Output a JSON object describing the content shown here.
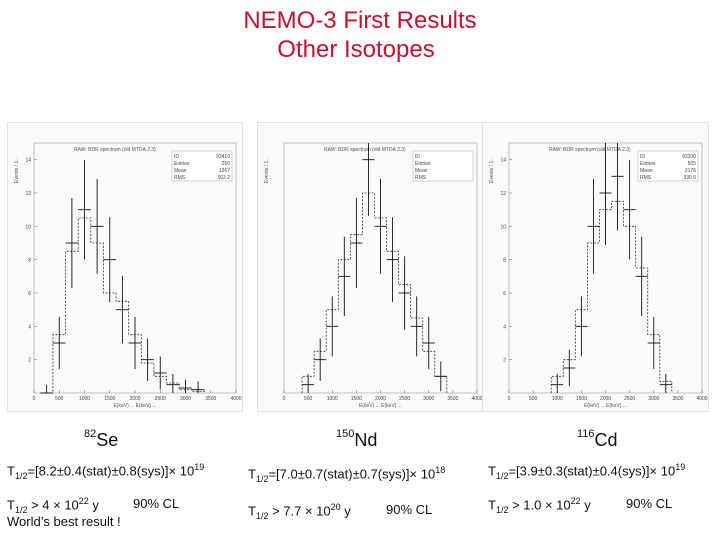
{
  "title": {
    "line1": "NEMO-3 First Results",
    "line2": "Other Isotopes"
  },
  "panels": [
    {
      "isotope": {
        "mass": "82",
        "symbol": "Se"
      },
      "half_life": {
        "prefix": "T",
        "sub": "1/2",
        "mid": "=[8.2±0.4(stat)±0.8(sys)]× 10",
        "exp": "19"
      },
      "limit": {
        "prefix": "T",
        "sub": "1/2",
        "text": " > 4 × 10",
        "exp": "22",
        "unit": " y",
        "cl": "90% CL"
      },
      "note": "World’s best result !",
      "plot": {
        "header": "RAW: BDR spectrum (old MTDA 2.3)",
        "stats": [
          [
            "ID",
            "93410"
          ],
          [
            "Entries",
            "250"
          ],
          [
            "Mean",
            "1267"
          ],
          [
            "RMS",
            "502.2"
          ]
        ],
        "ylabel": "Events / 1...",
        "xlabel": "E(keV) ... E(keV) ...",
        "yticks": [
          "2",
          "4",
          "6",
          "8",
          "10",
          "12",
          "14"
        ],
        "xticks": [
          "0",
          "500",
          "1000",
          "1500",
          "2000",
          "2500",
          "3000",
          "3500",
          "4000"
        ]
      }
    },
    {
      "isotope": {
        "mass": "150",
        "symbol": "Nd"
      },
      "half_life": {
        "prefix": "T",
        "sub": "1/2",
        "mid": "=[7.0±0.7(stat)±0.7(sys)]× 10",
        "exp": "18"
      },
      "limit": {
        "prefix": "T",
        "sub": "1/2",
        "text": " > 7.7 × 10",
        "exp": "20",
        "unit": " y",
        "cl": "90% CL"
      },
      "plot": {
        "header": "RAW: BDR spectrum (old MTDA 2.3)",
        "stats": [
          [
            "ID",
            ""
          ],
          [
            "Entries",
            ""
          ],
          [
            "Mean",
            ""
          ],
          [
            "RMS",
            ""
          ]
        ],
        "ylabel": "Events / 1...",
        "xlabel": "E(keV) ... E(keV) ...",
        "yticks": [],
        "xticks": [
          "0",
          "500",
          "1000",
          "1500",
          "2000",
          "2500",
          "3000",
          "3500",
          "4000"
        ]
      }
    },
    {
      "isotope": {
        "mass": "116",
        "symbol": "Cd"
      },
      "half_life": {
        "prefix": "T",
        "sub": "1/2",
        "mid": "=[3.9±0.3(stat)±0.4(sys)]× 10",
        "exp": "19"
      },
      "limit": {
        "prefix": "T",
        "sub": "1/2",
        "text": " > 1.0 × 10",
        "exp": "22",
        "unit": " y",
        "cl": "90% CL"
      },
      "plot": {
        "header": "RAW: BDR spectrum (old MTDA 2.3)",
        "stats": [
          [
            "ID",
            "93200"
          ],
          [
            "Entries",
            "505"
          ],
          [
            "Mean",
            "2176"
          ],
          [
            "RMS",
            "330.5"
          ]
        ],
        "ylabel": "Events / 1...",
        "xlabel": "E(keV) ... E(keV) ...",
        "yticks": [
          "2",
          "4",
          "6",
          "8",
          "10",
          "12",
          "14"
        ],
        "xticks": [
          "0",
          "500",
          "1000",
          "1500",
          "2000",
          "2500",
          "3000",
          "3500",
          "4000"
        ]
      }
    }
  ],
  "chart_data": [
    {
      "type": "bar",
      "title": "",
      "x": [
        250,
        500,
        750,
        1000,
        1250,
        1500,
        1750,
        2000,
        2250,
        2500,
        2750,
        3000,
        3250
      ],
      "series": [
        {
          "values": [
            0,
            3,
            9,
            11,
            10,
            8,
            5,
            3,
            2,
            1.2,
            0.5,
            0.3,
            0.2
          ]
        },
        {
          "values": [
            0,
            3.5,
            8.5,
            10.5,
            9,
            6,
            5.5,
            3.5,
            1.8,
            1.0,
            0.6,
            0.2,
            0.1
          ]
        }
      ],
      "xlim": [
        0,
        4000
      ],
      "ylim": [
        0,
        15
      ],
      "xlabel": "",
      "ylabel": ""
    },
    {
      "type": "bar",
      "title": "",
      "x": [
        500,
        750,
        1000,
        1250,
        1500,
        1750,
        2000,
        2250,
        2500,
        2750,
        3000,
        3250
      ],
      "series": [
        {
          "values": [
            0.5,
            2,
            4,
            7,
            9,
            14,
            10,
            8,
            6,
            4,
            3,
            1
          ]
        },
        {
          "values": [
            1,
            2.5,
            5,
            8,
            9.5,
            12,
            10.5,
            8.5,
            6.5,
            4.5,
            2.5,
            1
          ]
        }
      ],
      "xlim": [
        0,
        4000
      ],
      "ylim": [
        0,
        15
      ],
      "xlabel": "",
      "ylabel": ""
    },
    {
      "type": "bar",
      "title": "",
      "x": [
        1000,
        1250,
        1500,
        1750,
        2000,
        2250,
        2500,
        2750,
        3000,
        3250
      ],
      "series": [
        {
          "values": [
            0.5,
            1.5,
            4,
            10,
            12,
            13,
            11,
            7,
            3,
            0.5
          ]
        },
        {
          "values": [
            1,
            2,
            5,
            9,
            11,
            11.5,
            10,
            7.5,
            3.5,
            0.7
          ]
        }
      ],
      "xlim": [
        0,
        4000
      ],
      "ylim": [
        0,
        15
      ],
      "xlabel": "",
      "ylabel": ""
    }
  ]
}
